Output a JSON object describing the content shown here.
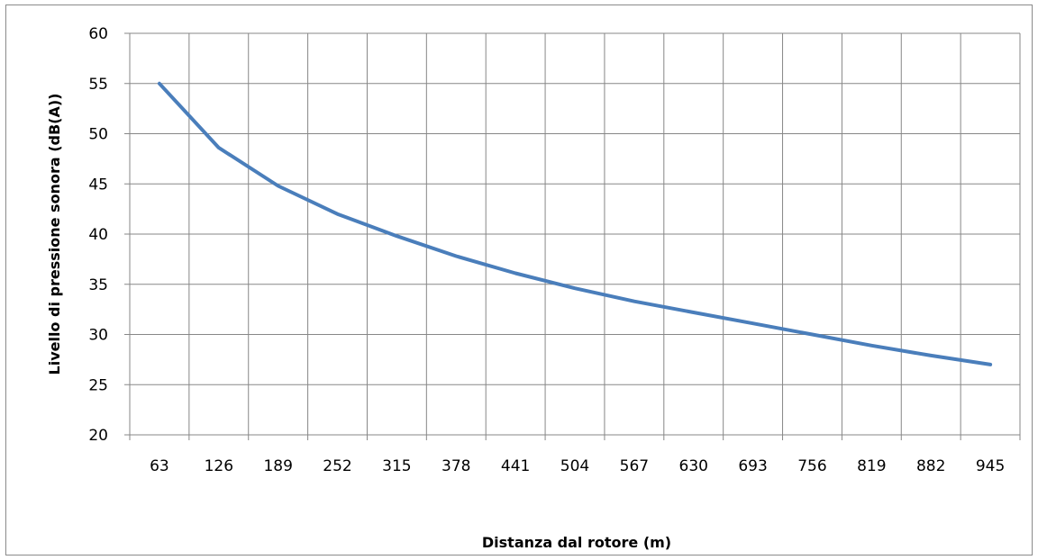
{
  "chart_data": {
    "type": "line",
    "title": "",
    "xlabel": "Distanza dal rotore (m)",
    "ylabel": "Livello di pressione sonora (dB(A))",
    "categories": [
      "63",
      "126",
      "189",
      "252",
      "315",
      "378",
      "441",
      "504",
      "567",
      "630",
      "693",
      "756",
      "819",
      "882",
      "945"
    ],
    "x": [
      63,
      126,
      189,
      252,
      315,
      378,
      441,
      504,
      567,
      630,
      693,
      756,
      819,
      882,
      945
    ],
    "series": [
      {
        "values": [
          55.0,
          48.6,
          44.8,
          42.0,
          39.8,
          37.8,
          36.1,
          34.6,
          33.3,
          32.2,
          31.1,
          30.0,
          28.9,
          27.9,
          27.0
        ],
        "color": "#4a7ebb"
      }
    ],
    "ylim": [
      20,
      60
    ],
    "yticks": [
      20,
      25,
      30,
      35,
      40,
      45,
      50,
      55,
      60
    ],
    "grid": true,
    "legend": "none"
  }
}
